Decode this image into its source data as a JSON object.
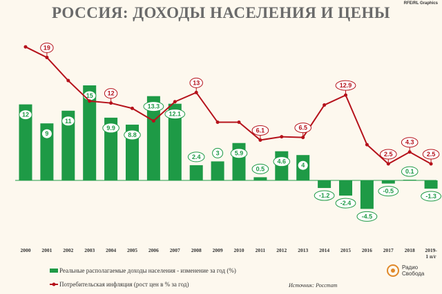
{
  "title": "РОССИЯ: ДОХОДЫ НАСЕЛЕНИЯ И ЦЕНЫ",
  "credit": "RFE/RL Graphics",
  "legend": {
    "income": "Реальные располагаемые доходы населения - изменение за год (%)",
    "inflation": "Потребительская инфляция (рост цен в % за год)"
  },
  "source": "Источник: Росстат",
  "logo": {
    "line1": "Радио",
    "line2": "Свобода"
  },
  "colors": {
    "bar": "#1e9a46",
    "line": "#b5121b",
    "bg": "#fdf8ee"
  },
  "chart_data": {
    "type": "bar+line",
    "categories": [
      "2000",
      "2001",
      "2002",
      "2003",
      "2004",
      "2005",
      "2006",
      "2007",
      "2008",
      "2009",
      "2010",
      "2011",
      "2012",
      "2013",
      "2014",
      "2015",
      "2016",
      "2017",
      "2018",
      "2019-\n1 п/г"
    ],
    "series": [
      {
        "name": "Реальные располагаемые доходы населения - изменение за год (%)",
        "type": "bar",
        "values": [
          12,
          9,
          11,
          15,
          9.9,
          8.8,
          13.3,
          12.1,
          2.4,
          3,
          5.9,
          0.5,
          4.6,
          4,
          -1.2,
          -2.4,
          -4.5,
          -0.5,
          0.1,
          -1.3
        ],
        "labels": [
          "12",
          "9",
          "11",
          "15",
          "9.9",
          "8.8",
          "13.3",
          "12.1",
          "2.4",
          "3",
          "5.9",
          "0.5",
          "4.6",
          "4",
          "-1.2",
          "-2.4",
          "-4.5",
          "-0.5",
          "0.1",
          "-1.3"
        ]
      },
      {
        "name": "Потребительская инфляция (рост цен в % за год)",
        "type": "line",
        "values": [
          20.2,
          18.6,
          15.1,
          12.0,
          11.7,
          10.9,
          9.0,
          11.9,
          13.3,
          8.8,
          8.8,
          6.1,
          6.6,
          6.5,
          11.4,
          12.9,
          5.4,
          2.5,
          4.3,
          2.5
        ],
        "labels": [
          "",
          "19",
          "",
          "",
          "12",
          "",
          "",
          "",
          "13",
          "",
          "",
          "6.1",
          "",
          "6.5",
          "",
          "12.9",
          "",
          "2.5",
          "4.3",
          "2.5"
        ]
      }
    ],
    "grid": false
  }
}
